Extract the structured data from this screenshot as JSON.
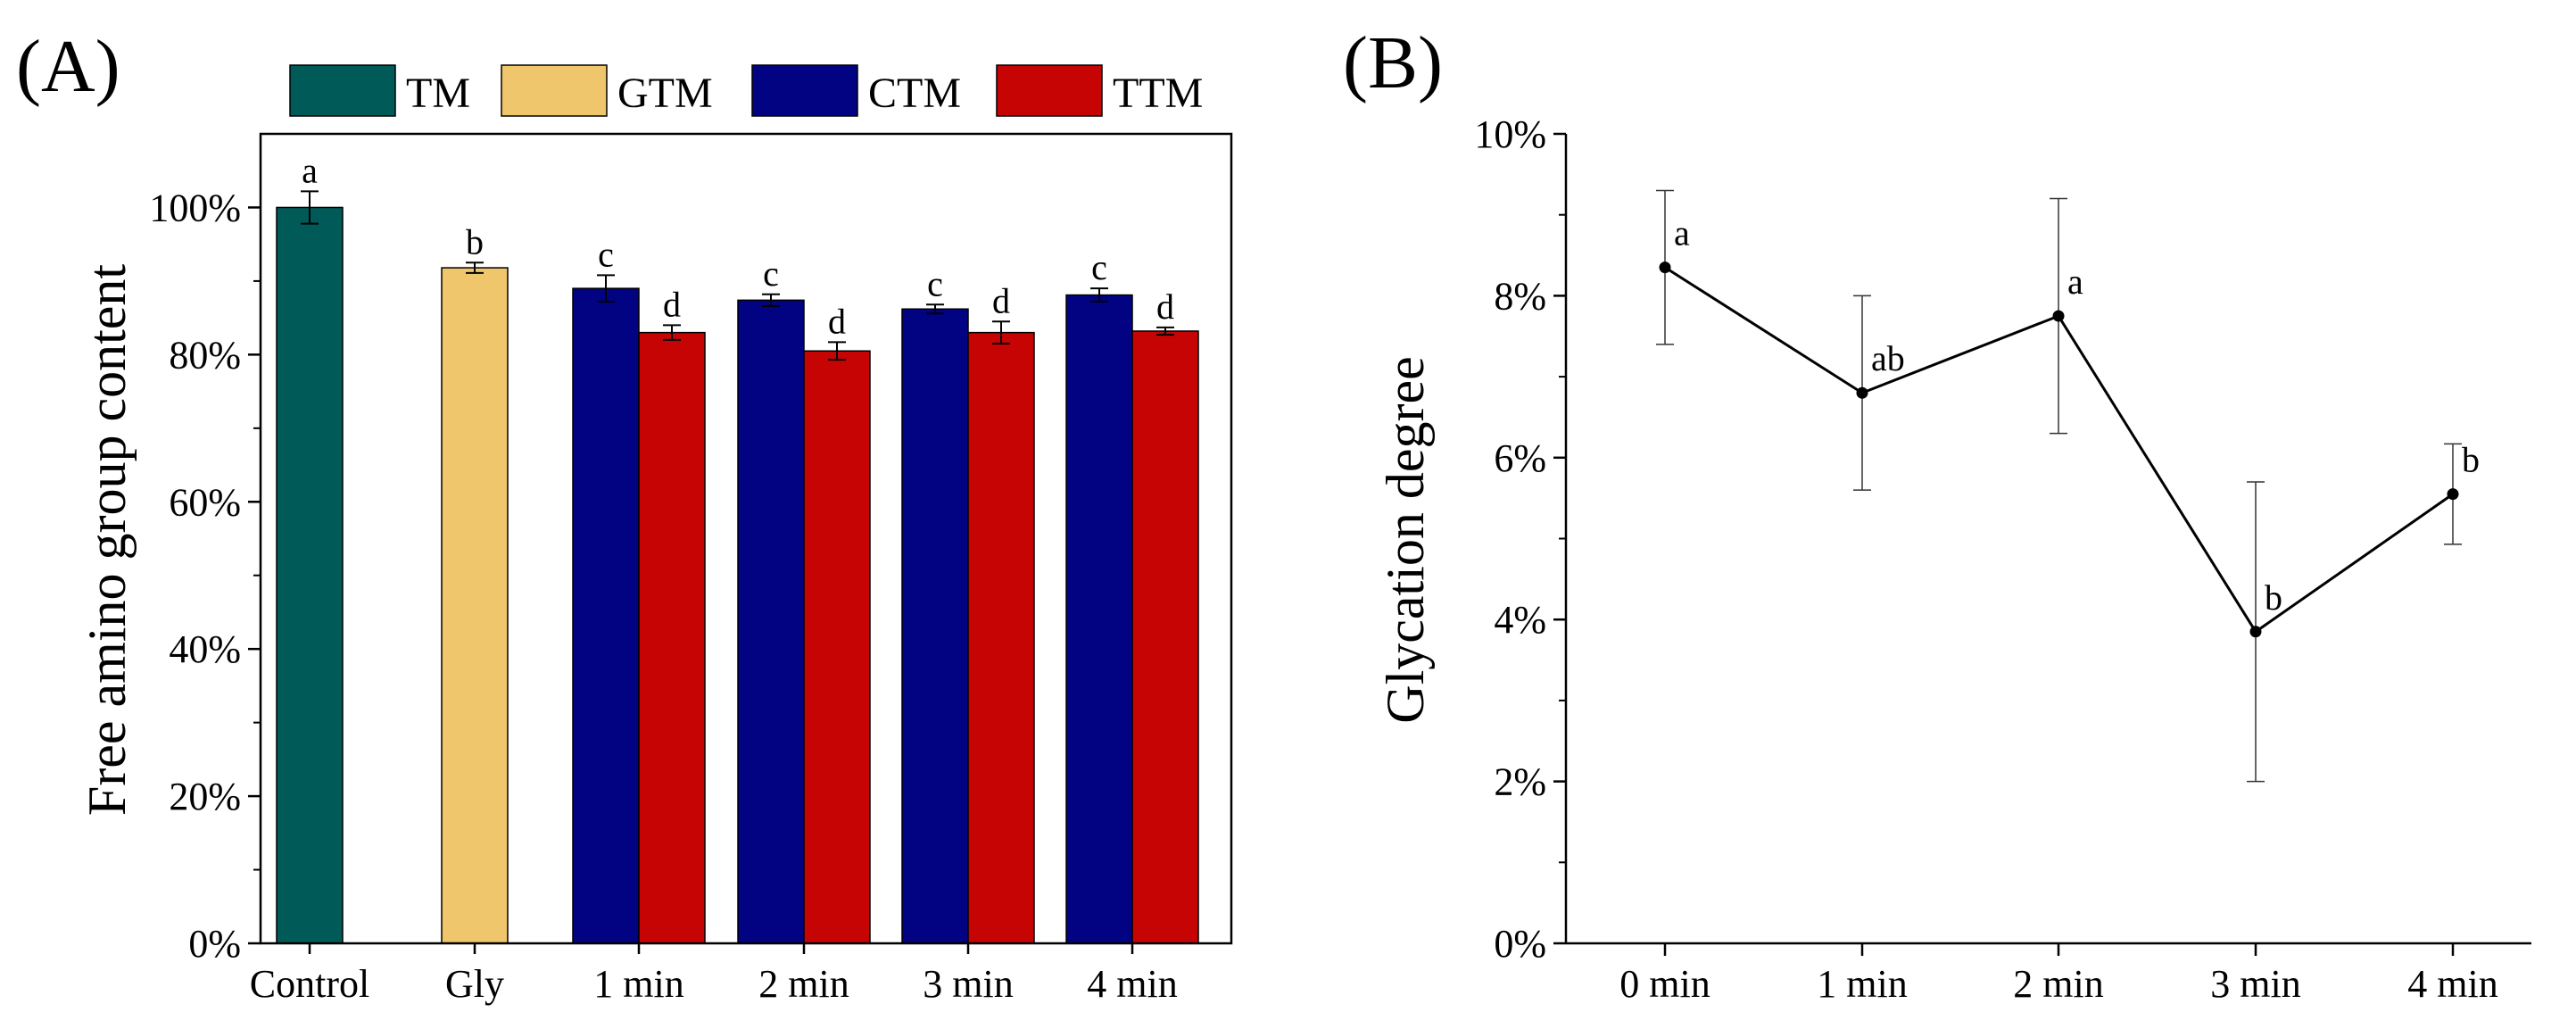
{
  "chart_data": [
    {
      "panel": "(A)",
      "type": "bar",
      "ylabel": "Free amino group content",
      "xlabel": "",
      "ylim": [
        0,
        110
      ],
      "yticks": [
        "0%",
        "20%",
        "40%",
        "60%",
        "80%",
        "100%"
      ],
      "ytick_values": [
        0,
        20,
        40,
        60,
        80,
        100
      ],
      "legend": [
        {
          "name": "TM",
          "color": "#005a58"
        },
        {
          "name": "GTM",
          "color": "#efc66b"
        },
        {
          "name": "CTM",
          "color": "#020382"
        },
        {
          "name": "TTM",
          "color": "#c60404"
        }
      ],
      "legend_position": "top",
      "groups": [
        {
          "label": "Control",
          "bars": [
            {
              "series": "TM",
              "value": 100,
              "err": 2.2,
              "sig": "a"
            }
          ]
        },
        {
          "label": "Gly",
          "bars": [
            {
              "series": "GTM",
              "value": 91.8,
              "err": 0.7,
              "sig": "b"
            }
          ]
        },
        {
          "label": "1 min",
          "bars": [
            {
              "series": "CTM",
              "value": 89,
              "err": 1.8,
              "sig": "c"
            },
            {
              "series": "TTM",
              "value": 83,
              "err": 1.0,
              "sig": "d"
            }
          ]
        },
        {
          "label": "2 min",
          "bars": [
            {
              "series": "CTM",
              "value": 87.4,
              "err": 0.8,
              "sig": "c"
            },
            {
              "series": "TTM",
              "value": 80.5,
              "err": 1.2,
              "sig": "d"
            }
          ]
        },
        {
          "label": "3 min",
          "bars": [
            {
              "series": "CTM",
              "value": 86.2,
              "err": 0.6,
              "sig": "c"
            },
            {
              "series": "TTM",
              "value": 83,
              "err": 1.5,
              "sig": "d"
            }
          ]
        },
        {
          "label": "4 min",
          "bars": [
            {
              "series": "CTM",
              "value": 88.1,
              "err": 0.9,
              "sig": "c"
            },
            {
              "series": "TTM",
              "value": 83.2,
              "err": 0.5,
              "sig": "d"
            }
          ]
        }
      ]
    },
    {
      "panel": "(B)",
      "type": "line",
      "ylabel": "Glycation degree",
      "xlabel": "",
      "ylim": [
        0,
        10
      ],
      "yticks": [
        "0%",
        "2%",
        "4%",
        "6%",
        "8%",
        "10%"
      ],
      "ytick_values": [
        0,
        2,
        4,
        6,
        8,
        10
      ],
      "categories": [
        "0 min",
        "1 min",
        "2 min",
        "3 min",
        "4 min"
      ],
      "values": [
        8.35,
        6.8,
        7.75,
        3.85,
        5.55
      ],
      "err": [
        0.95,
        1.2,
        1.45,
        1.85,
        0.62
      ],
      "sig": [
        "a",
        "ab",
        "a",
        "b",
        "b"
      ]
    }
  ]
}
